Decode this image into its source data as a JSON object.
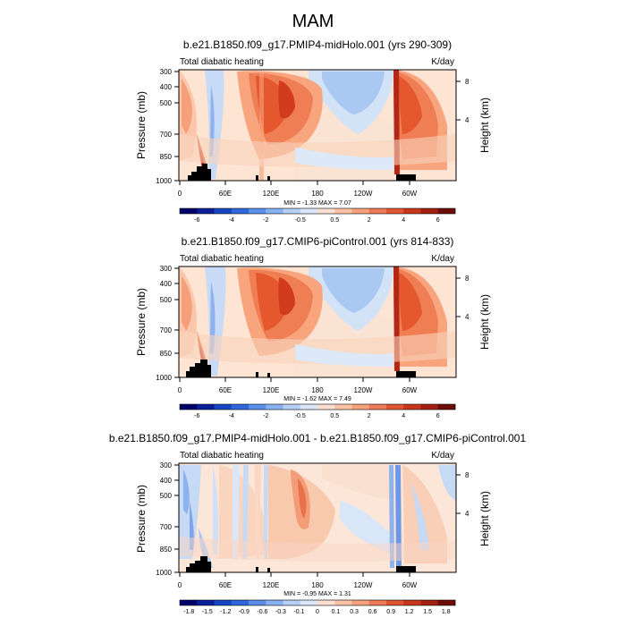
{
  "main_title": "MAM",
  "chart_data": [
    {
      "type": "heatmap",
      "title": "b.e21.B1850.f09_g17.PMIP4-midHolo.001 (yrs 290-309)",
      "left_label": "Total diabatic heating",
      "right_label": "K/day",
      "ylabel": "Pressure (mb)",
      "ylabel_right": "Height (km)",
      "y_ticks": [
        "300",
        "400",
        "500",
        "700",
        "850",
        "1000"
      ],
      "y_right_ticks": [
        "8",
        "4"
      ],
      "x_ticks": [
        "0",
        "60E",
        "120E",
        "180",
        "120W",
        "60W"
      ],
      "minmax": "MIN = -1.33  MAX =  7.07",
      "colorbar_labels": [
        "-6",
        "-4",
        "-2",
        "-0.5",
        "0.5",
        "2",
        "4",
        "6"
      ]
    },
    {
      "type": "heatmap",
      "title": "b.e21.B1850.f09_g17.CMIP6-piControl.001 (yrs 814-833)",
      "left_label": "Total diabatic heating",
      "right_label": "K/day",
      "ylabel": "Pressure (mb)",
      "ylabel_right": "Height (km)",
      "y_ticks": [
        "300",
        "400",
        "500",
        "700",
        "850",
        "1000"
      ],
      "y_right_ticks": [
        "8",
        "4"
      ],
      "x_ticks": [
        "0",
        "60E",
        "120E",
        "180",
        "120W",
        "60W"
      ],
      "minmax": "MIN = -1.62  MAX =  7.49",
      "colorbar_labels": [
        "-6",
        "-4",
        "-2",
        "-0.5",
        "0.5",
        "2",
        "4",
        "6"
      ]
    },
    {
      "type": "heatmap",
      "title": "b.e21.B1850.f09_g17.PMIP4-midHolo.001 - b.e21.B1850.f09_g17.CMIP6-piControl.001",
      "left_label": "Total diabatic heating",
      "right_label": "K/day",
      "ylabel": "Pressure (mb)",
      "ylabel_right": "Height (km)",
      "y_ticks": [
        "300",
        "400",
        "500",
        "700",
        "850",
        "1000"
      ],
      "y_right_ticks": [
        "8",
        "4"
      ],
      "x_ticks": [
        "0",
        "60E",
        "120E",
        "180",
        "120W",
        "60W"
      ],
      "minmax": "MIN = -0.95  MAX =  1.31",
      "colorbar_labels": [
        "-1.8",
        "-1.5",
        "-1.2",
        "-0.9",
        "-0.6",
        "-0.3",
        "-0.1",
        "0",
        "0.1",
        "0.3",
        "0.6",
        "0.9",
        "1.2",
        "1.5",
        "1.8"
      ]
    }
  ]
}
